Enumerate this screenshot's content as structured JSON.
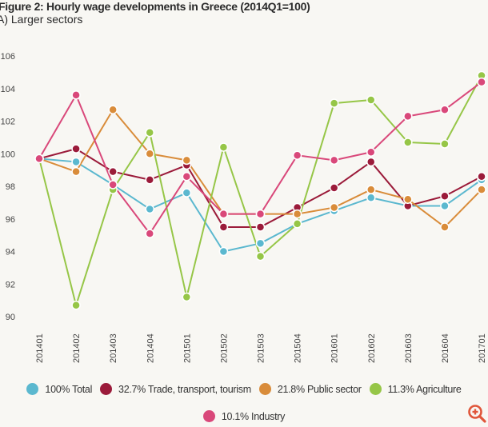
{
  "chart_data": {
    "type": "line",
    "title": "Figure 2: Hourly wage developments in Greece (2014Q1=100)",
    "subtitle": "A) Larger sectors",
    "xlabel": "",
    "ylabel": "",
    "ylim": [
      90,
      106
    ],
    "yticks": [
      "90",
      "92",
      "94",
      "96",
      "98",
      "100",
      "102",
      "104",
      "106"
    ],
    "grid": false,
    "legend_placement": "bottom",
    "categories": [
      "2014Q1",
      "2014Q2",
      "2014Q3",
      "2014Q4",
      "2015Q1",
      "2015Q2",
      "2015Q3",
      "2015Q4",
      "2016Q1",
      "2016Q2",
      "2016Q3",
      "2016Q4",
      "2017Q1"
    ],
    "series": [
      {
        "name": "100% Total",
        "color": "#5bb8cf",
        "values": [
          99.7,
          99.5,
          98.1,
          96.6,
          97.6,
          94.0,
          94.5,
          95.7,
          96.5,
          97.3,
          96.8,
          96.8,
          98.4
        ]
      },
      {
        "name": "32.7% Trade, transport, tourism",
        "color": "#9b1b3a",
        "values": [
          99.7,
          100.3,
          98.9,
          98.4,
          99.3,
          95.5,
          95.5,
          96.7,
          97.9,
          99.5,
          96.8,
          97.4,
          98.6
        ]
      },
      {
        "name": "21.8% Public sector",
        "color": "#d98c3a",
        "values": [
          99.7,
          98.9,
          102.7,
          100.0,
          99.6,
          96.3,
          96.3,
          96.3,
          96.7,
          97.8,
          97.2,
          95.5,
          97.8
        ]
      },
      {
        "name": "11.3% Agriculture",
        "color": "#96c647",
        "values": [
          99.7,
          90.7,
          97.8,
          101.3,
          91.2,
          100.4,
          93.7,
          95.7,
          103.1,
          103.3,
          100.7,
          100.6,
          104.8
        ]
      },
      {
        "name": "10.1% Industry",
        "color": "#d9487a",
        "values": [
          99.7,
          103.6,
          98.1,
          95.1,
          98.6,
          96.3,
          96.3,
          99.9,
          99.6,
          100.1,
          102.3,
          102.7,
          104.4
        ]
      }
    ]
  },
  "zoom_icon": "zoom-in-icon",
  "zoom_color": "#e0563a"
}
